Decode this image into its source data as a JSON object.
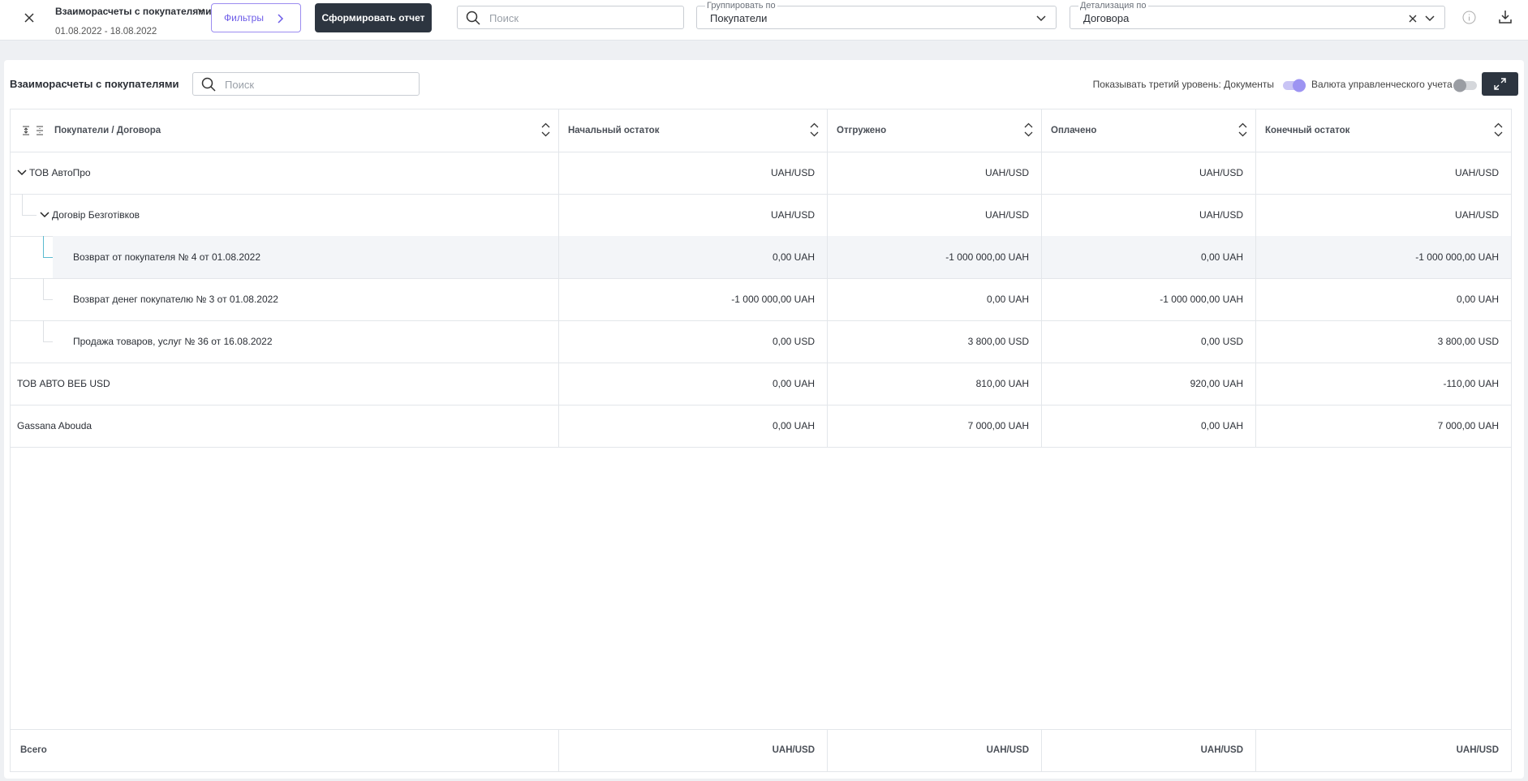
{
  "topbar": {
    "title": "Взаиморасчеты с покупателями",
    "period": "01.08.2022 - 18.08.2022",
    "filters_button": "Фильтры",
    "generate_button": "Сформировать отчет",
    "search_placeholder": "Поиск",
    "group_by": {
      "label": "Группировать по",
      "value": "Покупатели"
    },
    "detail": {
      "label": "Детализация по",
      "value": "Договора"
    }
  },
  "panel": {
    "title": "Взаиморасчеты с покупателями",
    "search_placeholder": "Поиск",
    "toggle_third_level": "Показывать третий уровень: Документы",
    "toggle_currency": "Валюта управленческого учета"
  },
  "table": {
    "columns": [
      "Покупатели / Договора",
      "Начальный остаток",
      "Отгружено",
      "Оплачено",
      "Конечный остаток"
    ],
    "rows": [
      {
        "label": "ТОВ АвтоПро",
        "values": [
          "UAH/USD",
          "UAH/USD",
          "UAH/USD",
          "UAH/USD"
        ],
        "children": [
          {
            "label": "Договір Безготівков",
            "values": [
              "UAH/USD",
              "UAH/USD",
              "UAH/USD",
              "UAH/USD"
            ],
            "children": [
              {
                "label": "Возврат от покупателя № 4 от 01.08.2022",
                "values": [
                  "0,00 UAH",
                  "-1 000 000,00 UAH",
                  "0,00 UAH",
                  "-1 000 000,00 UAH"
                ]
              },
              {
                "label": "Возврат денег покупателю № 3 от 01.08.2022",
                "values": [
                  "-1 000 000,00 UAH",
                  "0,00 UAH",
                  "-1 000 000,00 UAH",
                  "0,00 UAH"
                ]
              },
              {
                "label": "Продажа товаров, услуг № 36 от 16.08.2022",
                "values": [
                  "0,00 USD",
                  "3 800,00 USD",
                  "0,00 USD",
                  "3 800,00 USD"
                ]
              }
            ]
          }
        ]
      },
      {
        "label": "ТОВ АВТО ВЕБ USD",
        "values": [
          "0,00 UAH",
          "810,00 UAH",
          "920,00 UAH",
          "-110,00 UAH"
        ]
      },
      {
        "label": "Gassana Abouda",
        "values": [
          "0,00 UAH",
          "7 000,00 UAH",
          "0,00 UAH",
          "7 000,00 UAH"
        ]
      }
    ],
    "footer": {
      "label": "Всего",
      "values": [
        "UAH/USD",
        "UAH/USD",
        "UAH/USD",
        "UAH/USD"
      ]
    }
  }
}
